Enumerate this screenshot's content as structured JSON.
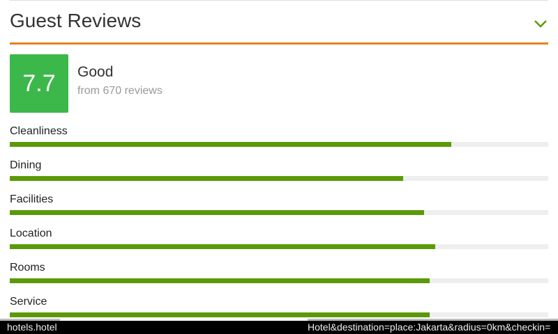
{
  "header": {
    "title": "Guest Reviews"
  },
  "summary": {
    "score": "7.7",
    "rating": "Good",
    "reviews": "from 670 reviews"
  },
  "ratings": {
    "xlim": [
      0,
      10
    ],
    "color": "#5a9a08",
    "categories": [
      "Cleanliness",
      "Dining",
      "Facilities",
      "Location",
      "Rooms",
      "Service"
    ],
    "values": [
      8.2,
      7.3,
      7.7,
      7.9,
      7.8,
      7.8
    ]
  },
  "status_bar": {
    "left": "hotels.hotel",
    "right": "Hotel&destination=place:Jakarta&radius=0km&checkin="
  }
}
